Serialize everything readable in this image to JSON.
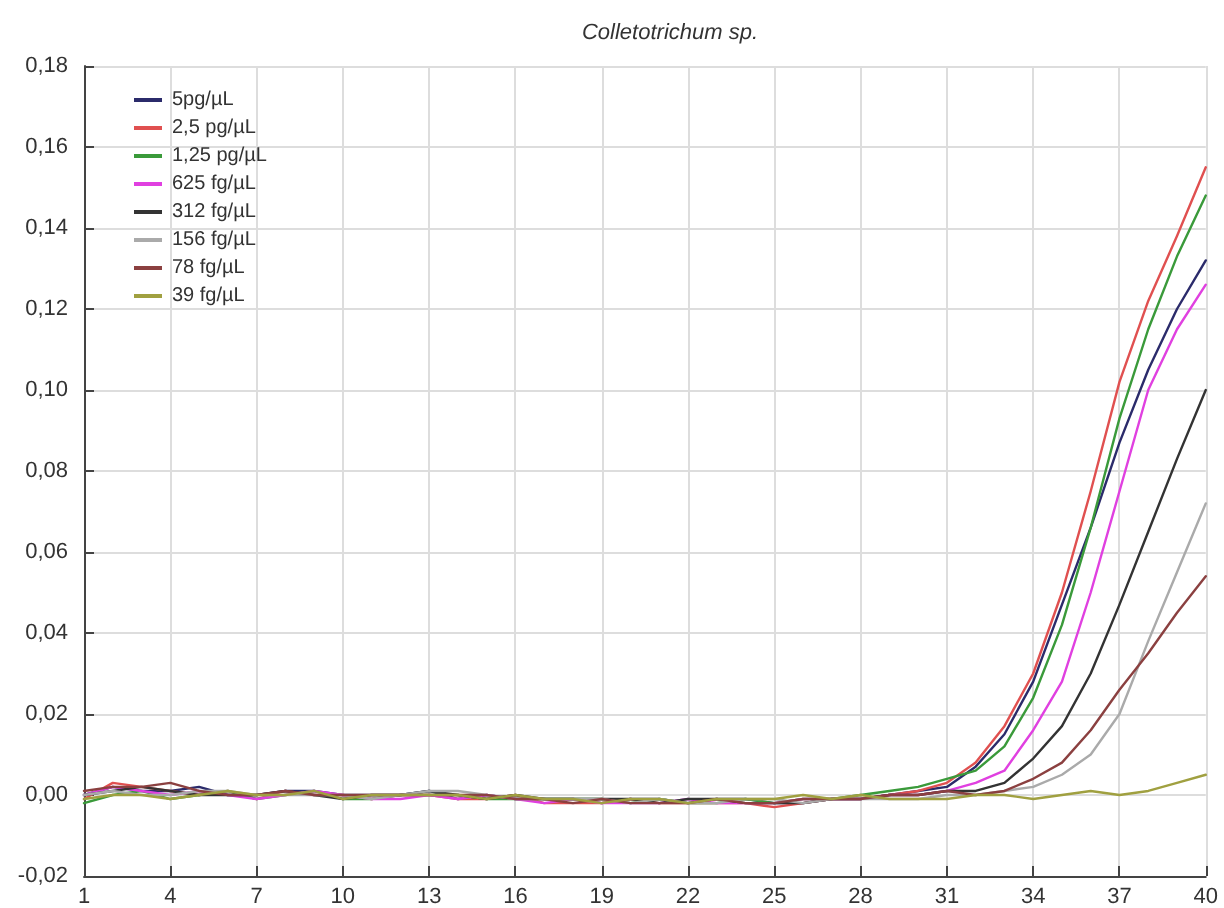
{
  "chart_data": {
    "type": "line",
    "title": "Colletotrichum sp.",
    "x": [
      1,
      2,
      3,
      4,
      5,
      6,
      7,
      8,
      9,
      10,
      11,
      12,
      13,
      14,
      15,
      16,
      17,
      18,
      19,
      20,
      21,
      22,
      23,
      24,
      25,
      26,
      27,
      28,
      29,
      30,
      31,
      32,
      33,
      34,
      35,
      36,
      37,
      38,
      39,
      40
    ],
    "series": [
      {
        "name": "5pg/µL",
        "color": "#2b2b6b",
        "values": [
          0,
          0.002,
          0.001,
          0.001,
          0.002,
          0,
          0,
          0.001,
          0.001,
          0,
          0,
          0,
          0.001,
          -0.001,
          0,
          -0.001,
          -0.001,
          -0.001,
          -0.002,
          -0.001,
          -0.001,
          -0.002,
          -0.001,
          -0.001,
          -0.002,
          -0.002,
          -0.001,
          -0.001,
          0,
          0.001,
          0.002,
          0.007,
          0.015,
          0.028,
          0.047,
          0.066,
          0.087,
          0.105,
          0.12,
          0.132
        ]
      },
      {
        "name": "2,5 pg/µL",
        "color": "#e05050",
        "values": [
          -0.001,
          0.003,
          0.002,
          0.001,
          0,
          0.001,
          -0.001,
          0.001,
          0,
          0,
          -0.001,
          0,
          0,
          -0.001,
          -0.001,
          0,
          -0.002,
          -0.002,
          -0.002,
          -0.001,
          -0.002,
          -0.002,
          -0.002,
          -0.002,
          -0.003,
          -0.002,
          -0.001,
          -0.001,
          0,
          0.001,
          0.003,
          0.008,
          0.017,
          0.03,
          0.05,
          0.075,
          0.102,
          0.122,
          0.138,
          0.155
        ]
      },
      {
        "name": "1,25 pg/µL",
        "color": "#3a9a3a",
        "values": [
          -0.002,
          0,
          0.001,
          -0.001,
          0,
          0.001,
          -0.001,
          0,
          0.001,
          -0.001,
          -0.001,
          0,
          0,
          0,
          -0.001,
          -0.001,
          -0.001,
          -0.001,
          -0.001,
          -0.002,
          -0.001,
          -0.002,
          -0.002,
          -0.001,
          -0.002,
          -0.001,
          -0.001,
          0,
          0.001,
          0.002,
          0.004,
          0.006,
          0.012,
          0.024,
          0.042,
          0.066,
          0.093,
          0.115,
          0.133,
          0.148
        ]
      },
      {
        "name": "625 fg/µL",
        "color": "#e040e0",
        "values": [
          0,
          0.002,
          0.001,
          0,
          0.001,
          0,
          -0.001,
          0,
          0.001,
          0,
          -0.001,
          -0.001,
          0,
          -0.001,
          0,
          -0.001,
          -0.002,
          -0.001,
          -0.002,
          -0.002,
          -0.002,
          -0.001,
          -0.002,
          -0.002,
          -0.002,
          -0.001,
          -0.001,
          -0.001,
          0,
          0,
          0.001,
          0.003,
          0.006,
          0.016,
          0.028,
          0.05,
          0.075,
          0.1,
          0.115,
          0.126
        ]
      },
      {
        "name": "312 fg/µL",
        "color": "#333333",
        "values": [
          0,
          0.001,
          0.002,
          0.001,
          0,
          0,
          0,
          0.001,
          0,
          -0.001,
          0,
          0,
          0.001,
          0,
          -0.001,
          0,
          -0.001,
          -0.001,
          -0.001,
          -0.001,
          -0.002,
          -0.001,
          -0.001,
          -0.002,
          -0.002,
          -0.002,
          -0.001,
          -0.001,
          0,
          0,
          0.001,
          0.001,
          0.003,
          0.009,
          0.017,
          0.03,
          0.047,
          0.065,
          0.083,
          0.1
        ]
      },
      {
        "name": "156 fg/µL",
        "color": "#aaaaaa",
        "values": [
          0,
          0.001,
          0,
          0,
          0.001,
          0.001,
          0,
          0,
          0,
          0,
          -0.001,
          0,
          0.001,
          0.001,
          0,
          -0.001,
          -0.001,
          -0.001,
          -0.001,
          -0.002,
          -0.001,
          -0.002,
          -0.002,
          -0.001,
          -0.001,
          -0.002,
          -0.001,
          -0.001,
          -0.001,
          -0.001,
          0,
          0,
          0.001,
          0.002,
          0.005,
          0.01,
          0.02,
          0.038,
          0.055,
          0.072
        ]
      },
      {
        "name": "78 fg/µL",
        "color": "#8b4040",
        "values": [
          0.001,
          0.002,
          0.002,
          0.003,
          0.001,
          0,
          0,
          0.001,
          0,
          0,
          0,
          0,
          0,
          0,
          0,
          -0.001,
          -0.001,
          -0.002,
          -0.001,
          -0.002,
          -0.002,
          -0.002,
          -0.001,
          -0.002,
          -0.002,
          -0.001,
          -0.001,
          -0.001,
          0,
          0,
          0.001,
          0,
          0.001,
          0.004,
          0.008,
          0.016,
          0.026,
          0.035,
          0.045,
          0.054
        ]
      },
      {
        "name": "39 fg/µL",
        "color": "#a0a040",
        "values": [
          -0.001,
          0,
          0,
          -0.001,
          0,
          0.001,
          0,
          0,
          0.001,
          -0.001,
          0,
          0,
          0,
          0,
          -0.001,
          0,
          -0.001,
          -0.001,
          -0.002,
          -0.001,
          -0.001,
          -0.002,
          -0.001,
          -0.001,
          -0.001,
          0,
          -0.001,
          0,
          -0.001,
          -0.001,
          -0.001,
          0,
          0,
          -0.001,
          0,
          0.001,
          0,
          0.001,
          0.003,
          0.005
        ]
      }
    ],
    "xlim": [
      1,
      40
    ],
    "xticks": [
      1,
      4,
      7,
      10,
      13,
      16,
      19,
      22,
      25,
      28,
      31,
      34,
      37,
      40
    ],
    "ylim": [
      -0.02,
      0.18
    ],
    "yticks": [
      {
        "value": -0.02,
        "label": "-0,02"
      },
      {
        "value": 0,
        "label": "0,00"
      },
      {
        "value": 0.02,
        "label": "0,02"
      },
      {
        "value": 0.04,
        "label": "0,04"
      },
      {
        "value": 0.06,
        "label": "0,06"
      },
      {
        "value": 0.08,
        "label": "0,08"
      },
      {
        "value": 0.1,
        "label": "0,10"
      },
      {
        "value": 0.12,
        "label": "0,12"
      },
      {
        "value": 0.14,
        "label": "0,14"
      },
      {
        "value": 0.16,
        "label": "0,16"
      },
      {
        "value": 0.18,
        "label": "0,18"
      }
    ],
    "grid": true,
    "legend": "top left",
    "marker": "none",
    "line_style": "solid"
  }
}
